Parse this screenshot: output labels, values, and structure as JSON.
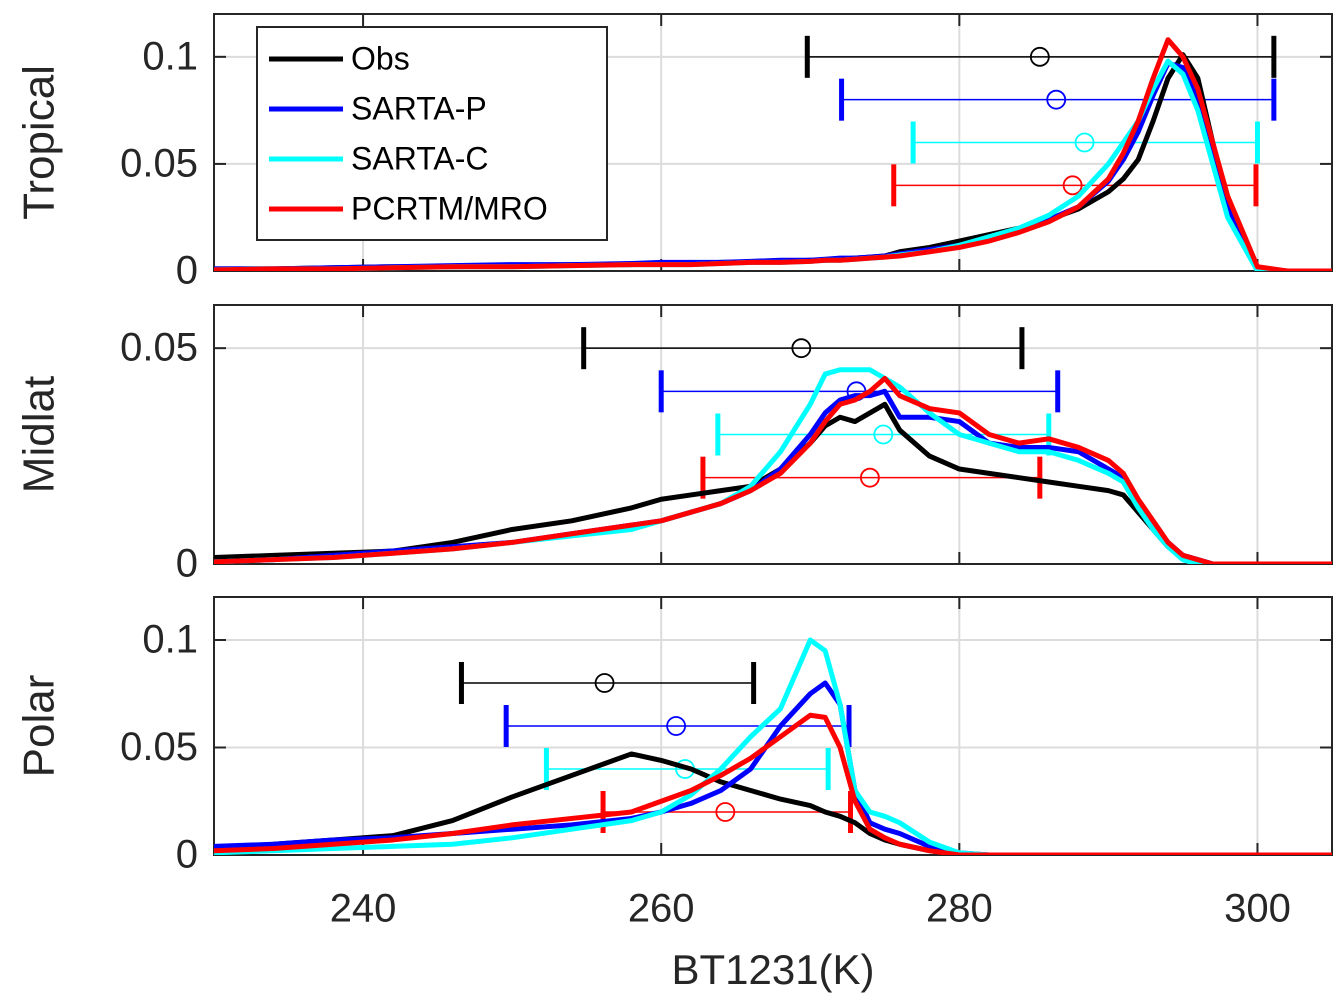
{
  "chart_data": [
    {
      "type": "line",
      "ylabel": "Tropical",
      "xlim": [
        230,
        305
      ],
      "ylim": [
        0,
        0.12
      ],
      "yticks": [
        0,
        0.05,
        0.1
      ],
      "xticks": [
        240,
        260,
        280,
        300
      ],
      "grid": true,
      "legend": "upper left",
      "x": [
        230,
        234,
        238,
        242,
        246,
        250,
        254,
        258,
        260,
        262,
        264,
        266,
        268,
        270,
        271,
        272,
        273,
        274,
        275,
        276,
        278,
        280,
        282,
        284,
        286,
        288,
        290,
        291,
        292,
        293,
        294,
        295,
        296,
        297,
        298,
        300,
        302,
        305
      ],
      "series": [
        {
          "name": "Obs",
          "color": "#000000",
          "values": [
            0.001,
            0.001,
            0.0015,
            0.002,
            0.002,
            0.0025,
            0.003,
            0.003,
            0.0035,
            0.0035,
            0.004,
            0.004,
            0.0045,
            0.005,
            0.005,
            0.0055,
            0.006,
            0.0065,
            0.007,
            0.009,
            0.011,
            0.014,
            0.017,
            0.02,
            0.024,
            0.029,
            0.037,
            0.043,
            0.052,
            0.07,
            0.09,
            0.101,
            0.09,
            0.06,
            0.03,
            0,
            0,
            0
          ],
          "errorbar": {
            "x": 285.4,
            "xmin": 269.8,
            "xmax": 301.1,
            "y": 0.1
          }
        },
        {
          "name": "SARTA-P",
          "color": "#0000ff",
          "values": [
            0.001,
            0.001,
            0.0015,
            0.002,
            0.0025,
            0.003,
            0.003,
            0.0035,
            0.004,
            0.004,
            0.004,
            0.0045,
            0.005,
            0.005,
            0.0055,
            0.006,
            0.006,
            0.0065,
            0.007,
            0.008,
            0.01,
            0.012,
            0.015,
            0.019,
            0.024,
            0.03,
            0.042,
            0.052,
            0.065,
            0.082,
            0.097,
            0.095,
            0.08,
            0.055,
            0.03,
            0.001,
            0,
            0
          ],
          "errorbar": {
            "x": 286.5,
            "xmin": 272.1,
            "xmax": 301.1,
            "y": 0.08
          }
        },
        {
          "name": "SARTA-C",
          "color": "#00ffff",
          "values": [
            0.0005,
            0.001,
            0.001,
            0.0015,
            0.002,
            0.002,
            0.0025,
            0.003,
            0.003,
            0.003,
            0.0035,
            0.004,
            0.004,
            0.0045,
            0.005,
            0.005,
            0.0055,
            0.006,
            0.0065,
            0.0075,
            0.009,
            0.012,
            0.016,
            0.02,
            0.026,
            0.035,
            0.05,
            0.06,
            0.07,
            0.085,
            0.098,
            0.092,
            0.075,
            0.05,
            0.025,
            0,
            0,
            0
          ],
          "errorbar": {
            "x": 288.4,
            "xmin": 276.9,
            "xmax": 300.0,
            "y": 0.06
          }
        },
        {
          "name": "PCRTM/MRO",
          "color": "#ff0000",
          "values": [
            0.0005,
            0.001,
            0.001,
            0.0015,
            0.002,
            0.002,
            0.0025,
            0.003,
            0.003,
            0.003,
            0.0035,
            0.004,
            0.004,
            0.0045,
            0.005,
            0.005,
            0.0055,
            0.006,
            0.0065,
            0.007,
            0.009,
            0.011,
            0.014,
            0.018,
            0.023,
            0.03,
            0.043,
            0.055,
            0.07,
            0.09,
            0.108,
            0.1,
            0.085,
            0.06,
            0.035,
            0.002,
            0,
            0
          ],
          "errorbar": {
            "x": 287.6,
            "xmin": 275.6,
            "xmax": 299.9,
            "y": 0.04
          }
        }
      ]
    },
    {
      "type": "line",
      "ylabel": "Midlat",
      "xlim": [
        230,
        305
      ],
      "ylim": [
        0,
        0.06
      ],
      "yticks": [
        0,
        0.05
      ],
      "xticks": [
        240,
        260,
        280,
        300
      ],
      "grid": true,
      "x": [
        230,
        234,
        238,
        242,
        246,
        250,
        254,
        258,
        260,
        262,
        264,
        266,
        268,
        270,
        271,
        272,
        273,
        274,
        275,
        276,
        278,
        280,
        282,
        284,
        286,
        288,
        290,
        291,
        292,
        293,
        294,
        295,
        296,
        297,
        298,
        300,
        302,
        305
      ],
      "series": [
        {
          "name": "Obs",
          "color": "#000000",
          "values": [
            0.0015,
            0.002,
            0.0025,
            0.003,
            0.005,
            0.008,
            0.01,
            0.013,
            0.015,
            0.016,
            0.017,
            0.018,
            0.022,
            0.028,
            0.032,
            0.034,
            0.033,
            0.035,
            0.037,
            0.031,
            0.025,
            0.022,
            0.021,
            0.02,
            0.019,
            0.018,
            0.017,
            0.016,
            0.012,
            0.008,
            0.004,
            0.002,
            0.001,
            0,
            0,
            0,
            0,
            0
          ],
          "errorbar": {
            "x": 269.4,
            "xmin": 254.8,
            "xmax": 284.2,
            "y": 0.05
          }
        },
        {
          "name": "SARTA-P",
          "color": "#0000ff",
          "values": [
            0.0005,
            0.001,
            0.002,
            0.003,
            0.004,
            0.005,
            0.007,
            0.009,
            0.01,
            0.012,
            0.014,
            0.017,
            0.022,
            0.03,
            0.035,
            0.038,
            0.039,
            0.039,
            0.04,
            0.034,
            0.034,
            0.033,
            0.028,
            0.027,
            0.027,
            0.026,
            0.022,
            0.02,
            0.014,
            0.009,
            0.005,
            0.002,
            0.001,
            0,
            0,
            0,
            0,
            0
          ],
          "errorbar": {
            "x": 273.1,
            "xmin": 260.0,
            "xmax": 286.6,
            "y": 0.04
          }
        },
        {
          "name": "SARTA-C",
          "color": "#00ffff",
          "values": [
            0.0005,
            0.001,
            0.0015,
            0.0025,
            0.0035,
            0.005,
            0.0065,
            0.008,
            0.01,
            0.012,
            0.014,
            0.018,
            0.026,
            0.037,
            0.044,
            0.045,
            0.045,
            0.045,
            0.043,
            0.041,
            0.035,
            0.03,
            0.028,
            0.026,
            0.026,
            0.024,
            0.021,
            0.019,
            0.013,
            0.008,
            0.004,
            0.001,
            0,
            0,
            0,
            0,
            0,
            0
          ],
          "errorbar": {
            "x": 274.9,
            "xmin": 263.8,
            "xmax": 286.0,
            "y": 0.03
          }
        },
        {
          "name": "PCRTM/MRO",
          "color": "#ff0000",
          "values": [
            0.0005,
            0.001,
            0.0015,
            0.0025,
            0.0035,
            0.005,
            0.007,
            0.009,
            0.01,
            0.012,
            0.014,
            0.017,
            0.021,
            0.028,
            0.033,
            0.037,
            0.038,
            0.04,
            0.043,
            0.039,
            0.036,
            0.035,
            0.03,
            0.028,
            0.029,
            0.027,
            0.024,
            0.021,
            0.015,
            0.01,
            0.005,
            0.002,
            0.001,
            0,
            0,
            0,
            0,
            0
          ],
          "errorbar": {
            "x": 274.0,
            "xmin": 262.8,
            "xmax": 285.4,
            "y": 0.02
          }
        }
      ]
    },
    {
      "type": "line",
      "ylabel": "Polar",
      "xlabel": "BT1231(K)",
      "xlim": [
        230,
        305
      ],
      "ylim": [
        0,
        0.12
      ],
      "yticks": [
        0,
        0.05,
        0.1
      ],
      "xticks": [
        240,
        260,
        280,
        300
      ],
      "grid": true,
      "x": [
        230,
        234,
        238,
        242,
        246,
        250,
        254,
        258,
        260,
        262,
        264,
        266,
        268,
        270,
        271,
        272,
        273,
        274,
        275,
        276,
        278,
        280,
        282,
        284,
        286,
        288,
        290,
        291,
        292,
        293,
        294,
        295,
        296,
        297,
        298,
        300,
        302,
        305
      ],
      "series": [
        {
          "name": "Obs",
          "color": "#000000",
          "values": [
            0.003,
            0.005,
            0.007,
            0.009,
            0.016,
            0.027,
            0.037,
            0.047,
            0.044,
            0.04,
            0.034,
            0.03,
            0.026,
            0.023,
            0.02,
            0.018,
            0.015,
            0.01,
            0.007,
            0.005,
            0.002,
            0,
            0,
            0,
            0,
            0,
            0,
            0,
            0,
            0,
            0,
            0,
            0,
            0,
            0,
            0,
            0,
            0
          ],
          "errorbar": {
            "x": 256.2,
            "xmin": 246.6,
            "xmax": 266.2,
            "y": 0.08
          }
        },
        {
          "name": "SARTA-P",
          "color": "#0000ff",
          "values": [
            0.004,
            0.005,
            0.007,
            0.008,
            0.01,
            0.012,
            0.014,
            0.017,
            0.02,
            0.024,
            0.03,
            0.04,
            0.06,
            0.075,
            0.08,
            0.07,
            0.03,
            0.015,
            0.012,
            0.01,
            0.004,
            0.001,
            0,
            0,
            0,
            0,
            0,
            0,
            0,
            0,
            0,
            0,
            0,
            0,
            0,
            0,
            0,
            0
          ],
          "errorbar": {
            "x": 261.0,
            "xmin": 249.6,
            "xmax": 272.6,
            "y": 0.06
          }
        },
        {
          "name": "SARTA-C",
          "color": "#00ffff",
          "values": [
            0.001,
            0.002,
            0.003,
            0.004,
            0.005,
            0.008,
            0.012,
            0.016,
            0.02,
            0.028,
            0.04,
            0.055,
            0.068,
            0.1,
            0.095,
            0.07,
            0.03,
            0.02,
            0.018,
            0.015,
            0.006,
            0.001,
            0,
            0,
            0,
            0,
            0,
            0,
            0,
            0,
            0,
            0,
            0,
            0,
            0,
            0,
            0,
            0
          ],
          "errorbar": {
            "x": 261.6,
            "xmin": 252.3,
            "xmax": 271.2,
            "y": 0.04
          }
        },
        {
          "name": "PCRTM/MRO",
          "color": "#ff0000",
          "values": [
            0.002,
            0.003,
            0.005,
            0.007,
            0.01,
            0.014,
            0.017,
            0.02,
            0.025,
            0.03,
            0.037,
            0.045,
            0.055,
            0.065,
            0.064,
            0.05,
            0.025,
            0.012,
            0.008,
            0.005,
            0.002,
            0,
            0,
            0,
            0,
            0,
            0,
            0,
            0,
            0,
            0,
            0,
            0,
            0,
            0,
            0,
            0,
            0
          ],
          "errorbar": {
            "x": 264.3,
            "xmin": 256.1,
            "xmax": 272.7,
            "y": 0.02
          }
        }
      ]
    }
  ]
}
